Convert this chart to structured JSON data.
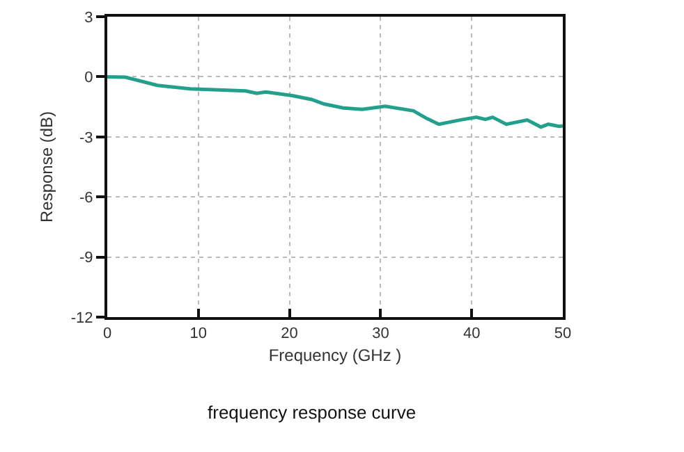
{
  "chart_data": {
    "type": "line",
    "xlabel": "Frequency (GHz )",
    "ylabel": "Response (dB)",
    "annotations": [
      "frequency response curve"
    ],
    "xlim": [
      0,
      50
    ],
    "xticks": [
      0,
      10,
      20,
      30,
      40,
      50
    ],
    "ylim": [
      -12,
      3
    ],
    "yticks": [
      -12,
      -9,
      -6,
      -3,
      0,
      3
    ],
    "grid": true,
    "marker": "none",
    "line_style": "solid",
    "series": [
      {
        "color": "#22a08c",
        "x": [
          0,
          2,
          5.5,
          9.1,
          15.2,
          16.4,
          17.4,
          20.3,
          22.4,
          23.8,
          25.9,
          28,
          30.5,
          33.6,
          35.1,
          36.4,
          38.7,
          40.5,
          41.5,
          42.3,
          43.8,
          46.1,
          47.6,
          48.4,
          49.6,
          50
        ],
        "values": [
          0,
          -0.02,
          -0.43,
          -0.6,
          -0.71,
          -0.83,
          -0.76,
          -0.94,
          -1.13,
          -1.36,
          -1.56,
          -1.63,
          -1.47,
          -1.7,
          -2.09,
          -2.37,
          -2.16,
          -2.02,
          -2.13,
          -2.02,
          -2.37,
          -2.16,
          -2.51,
          -2.37,
          -2.48,
          -2.45
        ]
      }
    ]
  }
}
